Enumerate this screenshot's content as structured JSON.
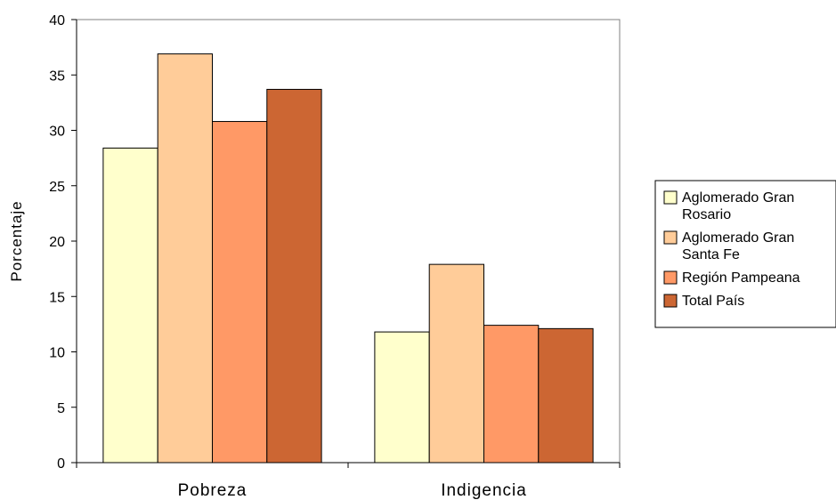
{
  "chart_data": {
    "type": "bar",
    "title": "",
    "xlabel": "",
    "ylabel": "Porcentaje",
    "ylim": [
      0,
      40
    ],
    "yticks": [
      0,
      5,
      10,
      15,
      20,
      25,
      30,
      35,
      40
    ],
    "grid": false,
    "legend_position": "right",
    "categories": [
      "Pobreza",
      "Indigencia"
    ],
    "series": [
      {
        "name": "Aglomerado Gran Rosario",
        "legend_lines": [
          "Aglomerado Gran",
          "Rosario"
        ],
        "color": "#ffffcc",
        "values": [
          28.4,
          11.8
        ]
      },
      {
        "name": "Aglomerado Gran Santa Fe",
        "legend_lines": [
          "Aglomerado Gran",
          "Santa Fe"
        ],
        "color": "#ffcc99",
        "values": [
          36.9,
          17.9
        ]
      },
      {
        "name": "Región Pampeana",
        "legend_lines": [
          "Región Pampeana"
        ],
        "color": "#ff9966",
        "values": [
          30.8,
          12.4
        ]
      },
      {
        "name": "Total País",
        "legend_lines": [
          "Total País"
        ],
        "color": "#cc6633",
        "values": [
          33.7,
          12.1
        ]
      }
    ]
  }
}
